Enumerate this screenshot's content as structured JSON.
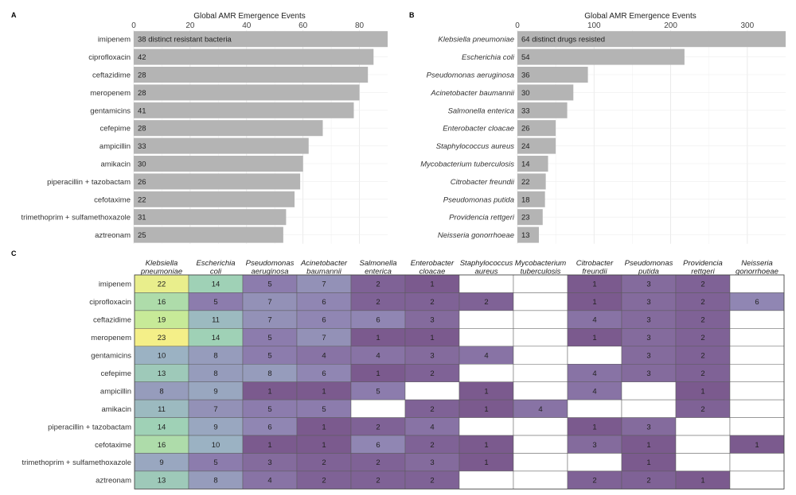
{
  "chart_data": [
    {
      "panel": "A",
      "type": "bar",
      "orientation": "horizontal",
      "xlabel": "Global AMR Emergence Events",
      "xlim": [
        0,
        90
      ],
      "xticks": [
        0,
        20,
        40,
        60,
        80
      ],
      "grid": true,
      "bar_color": "#b4b4b4",
      "categories": [
        "imipenem",
        "ciprofloxacin",
        "ceftazidime",
        "meropenem",
        "gentamicins",
        "cefepime",
        "ampicillin",
        "amikacin",
        "piperacillin + tazobactam",
        "cefotaxime",
        "trimethoprim + sulfamethoxazole",
        "aztreonam"
      ],
      "values": [
        90,
        85,
        83,
        80,
        78,
        67,
        62,
        60,
        59,
        57,
        54,
        53
      ],
      "labels": [
        "38 distinct resistant bacteria",
        "42",
        "28",
        "28",
        "41",
        "28",
        "33",
        "30",
        "26",
        "22",
        "31",
        "25"
      ]
    },
    {
      "panel": "B",
      "type": "bar",
      "orientation": "horizontal",
      "xlabel": "Global AMR Emergence Events",
      "xlim": [
        0,
        350
      ],
      "xticks": [
        0,
        100,
        200,
        300
      ],
      "grid": true,
      "bar_color": "#b4b4b4",
      "categories": [
        "Klebsiella pneumoniae",
        "Escherichia coli",
        "Pseudomonas aeruginosa",
        "Acinetobacter baumannii",
        "Salmonella enterica",
        "Enterobacter cloacae",
        "Staphylococcus aureus",
        "Mycobacterium tuberculosis",
        "Citrobacter freundii",
        "Pseudomonas putida",
        "Providencia rettgeri",
        "Neisseria gonorrhoeae"
      ],
      "values": [
        350,
        218,
        92,
        73,
        65,
        50,
        50,
        40,
        37,
        36,
        33,
        28
      ],
      "labels": [
        "64 distinct drugs resisted",
        "54",
        "36",
        "30",
        "33",
        "26",
        "24",
        "14",
        "22",
        "18",
        "23",
        "13"
      ]
    },
    {
      "panel": "C",
      "type": "heatmap",
      "columns": [
        "Klebsiella pneumoniae",
        "Escherichia coli",
        "Pseudomonas aeruginosa",
        "Acinetobacter baumannii",
        "Salmonella enterica",
        "Enterobacter cloacae",
        "Staphylococcus aureus",
        "Mycobacterium tuberculosis",
        "Citrobacter freundii",
        "Pseudomonas putida",
        "Providencia rettgeri",
        "Neisseria gonorrhoeae"
      ],
      "rows": [
        "imipenem",
        "ciprofloxacin",
        "ceftazidime",
        "meropenem",
        "gentamicins",
        "cefepime",
        "ampicillin",
        "amikacin",
        "piperacillin + tazobactam",
        "cefotaxime",
        "trimethoprim + sulfamethoxazole",
        "aztreonam"
      ],
      "values": [
        [
          22,
          14,
          5,
          7,
          2,
          1,
          null,
          null,
          1,
          3,
          2,
          null
        ],
        [
          16,
          5,
          7,
          6,
          2,
          2,
          2,
          null,
          1,
          3,
          2,
          6
        ],
        [
          19,
          11,
          7,
          6,
          6,
          3,
          null,
          null,
          4,
          3,
          2,
          null
        ],
        [
          23,
          14,
          5,
          7,
          1,
          1,
          null,
          null,
          1,
          3,
          2,
          null
        ],
        [
          10,
          8,
          5,
          4,
          4,
          3,
          4,
          null,
          null,
          3,
          2,
          null
        ],
        [
          13,
          8,
          8,
          6,
          1,
          2,
          null,
          null,
          4,
          3,
          2,
          null
        ],
        [
          8,
          9,
          1,
          1,
          5,
          null,
          1,
          null,
          4,
          null,
          1,
          null
        ],
        [
          11,
          7,
          5,
          5,
          null,
          2,
          1,
          4,
          null,
          null,
          2,
          null
        ],
        [
          14,
          9,
          6,
          1,
          2,
          4,
          null,
          null,
          1,
          3,
          null,
          null
        ],
        [
          16,
          10,
          1,
          1,
          6,
          2,
          1,
          null,
          3,
          1,
          null,
          1
        ],
        [
          9,
          5,
          3,
          2,
          2,
          3,
          1,
          null,
          null,
          1,
          null,
          null
        ],
        [
          13,
          8,
          4,
          2,
          2,
          2,
          null,
          null,
          2,
          2,
          1,
          null
        ]
      ],
      "color_scale": [
        "#7b5a8e",
        "#8e7fb0",
        "#9bb0c4",
        "#9fd3b5",
        "#c3e99a",
        "#f4ef88"
      ],
      "value_range": [
        1,
        23
      ]
    }
  ],
  "panel_labels": {
    "a": "A",
    "b": "B",
    "c": "C"
  }
}
